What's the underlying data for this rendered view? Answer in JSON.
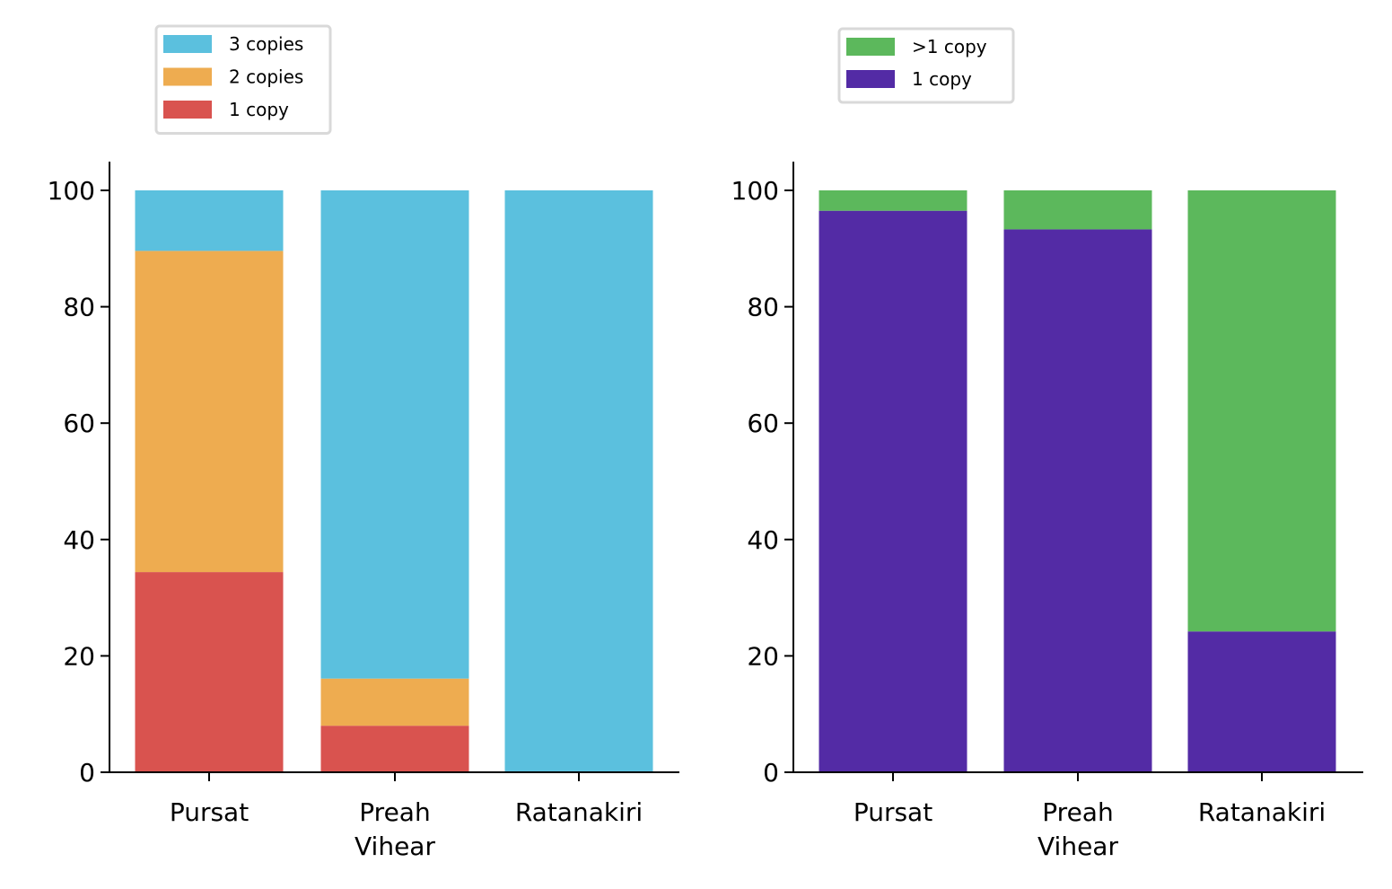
{
  "chart_data": [
    {
      "type": "bar",
      "stacked": true,
      "categories": [
        [
          "Pursat"
        ],
        [
          "Preah",
          "Vihear"
        ],
        [
          "Ratanakiri"
        ]
      ],
      "series": [
        {
          "name": "1 copy",
          "color": "#d9534f",
          "values": [
            34.4,
            8.0,
            0
          ]
        },
        {
          "name": "2 copies",
          "color": "#eeac50",
          "values": [
            55.2,
            8.1,
            0
          ]
        },
        {
          "name": "3 copies",
          "color": "#5bc0de",
          "values": [
            10.4,
            83.9,
            100
          ]
        }
      ],
      "legend_order": [
        "3 copies",
        "2 copies",
        "1 copy"
      ],
      "ylim": [
        0,
        105
      ],
      "yticks": [
        0,
        20,
        40,
        60,
        80,
        100
      ],
      "grid": false,
      "legend_position": "above plot, left"
    },
    {
      "type": "bar",
      "stacked": true,
      "categories": [
        [
          "Pursat"
        ],
        [
          "Preah",
          "Vihear"
        ],
        [
          "Ratanakiri"
        ]
      ],
      "series": [
        {
          "name": "1 copy",
          "color": "#532ba5",
          "values": [
            96.5,
            93.3,
            24.2
          ]
        },
        {
          "name": ">1 copy",
          "color": "#5cb85c",
          "values": [
            3.5,
            6.7,
            75.8
          ]
        }
      ],
      "legend_order": [
        ">1 copy",
        "1 copy"
      ],
      "ylim": [
        0,
        105
      ],
      "yticks": [
        0,
        20,
        40,
        60,
        80,
        100
      ],
      "grid": false,
      "legend_position": "above plot, center"
    }
  ]
}
